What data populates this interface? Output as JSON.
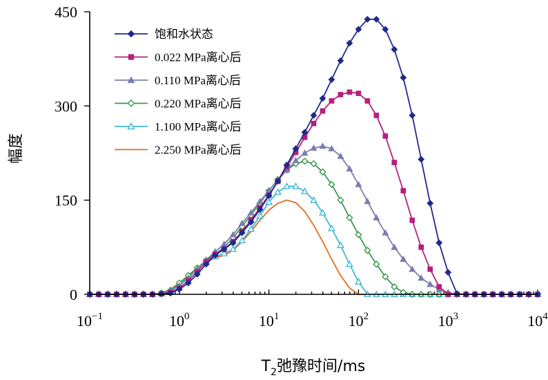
{
  "chart_data": {
    "type": "line",
    "title": "",
    "xlabel": {
      "main": "T",
      "sub": "2",
      "rest": "弛豫时间/ms"
    },
    "ylabel": "幅度",
    "x_scale": "log10",
    "xlim": [
      0.1,
      10000
    ],
    "ylim": [
      0,
      450
    ],
    "x_tick_labels": [
      {
        "base": "10",
        "exp": "−1"
      },
      {
        "base": "10",
        "exp": "0"
      },
      {
        "base": "10",
        "exp": "1"
      },
      {
        "base": "10",
        "exp": "2"
      },
      {
        "base": "10",
        "exp": "3"
      },
      {
        "base": "10",
        "exp": "4"
      }
    ],
    "y_ticks": [
      0,
      150,
      300,
      450
    ],
    "y_tick_labels": [
      "0",
      "150",
      "300",
      "450"
    ],
    "legend_position": "top-left",
    "series": [
      {
        "name": "饱和水状态",
        "color": "#1f2a8c",
        "marker": "diamond",
        "log_x": [
          -1.0,
          -0.9,
          -0.8,
          -0.7,
          -0.6,
          -0.5,
          -0.4,
          -0.3,
          -0.2,
          -0.1,
          0.0,
          0.1,
          0.2,
          0.3,
          0.4,
          0.5,
          0.6,
          0.7,
          0.8,
          0.9,
          1.0,
          1.1,
          1.2,
          1.3,
          1.4,
          1.5,
          1.6,
          1.7,
          1.8,
          1.9,
          2.0,
          2.1,
          2.2,
          2.3,
          2.4,
          2.5,
          2.6,
          2.7,
          2.8,
          2.9,
          3.0,
          3.1,
          3.2,
          3.3,
          3.4,
          3.5,
          3.6,
          3.7,
          3.8,
          3.9,
          4.0
        ],
        "values": [
          0,
          0,
          0,
          0,
          0,
          0,
          0,
          0,
          0.5,
          2,
          8,
          18,
          32,
          48,
          62,
          72,
          82,
          98,
          115,
          135,
          157,
          180,
          206,
          232,
          258,
          285,
          312,
          342,
          372,
          400,
          422,
          438,
          438,
          422,
          390,
          345,
          285,
          215,
          145,
          82,
          35,
          1,
          0,
          0,
          0,
          0,
          0,
          0,
          0,
          0,
          0
        ]
      },
      {
        "name": "0.022 MPa离心后",
        "color": "#b5207e",
        "marker": "square",
        "log_x": [
          -1.0,
          -0.9,
          -0.8,
          -0.7,
          -0.6,
          -0.5,
          -0.4,
          -0.3,
          -0.2,
          -0.1,
          0.0,
          0.1,
          0.2,
          0.3,
          0.4,
          0.5,
          0.6,
          0.7,
          0.8,
          0.9,
          1.0,
          1.1,
          1.2,
          1.3,
          1.4,
          1.5,
          1.6,
          1.7,
          1.8,
          1.9,
          2.0,
          2.1,
          2.2,
          2.3,
          2.4,
          2.5,
          2.6,
          2.7,
          2.8,
          2.9,
          3.0,
          3.1,
          3.2,
          3.3,
          3.4,
          3.5,
          3.6,
          3.7,
          3.8,
          3.9,
          4.0
        ],
        "values": [
          0,
          0,
          0,
          0,
          0,
          0,
          0,
          0,
          1,
          3,
          10,
          22,
          36,
          52,
          64,
          72,
          84,
          100,
          118,
          138,
          158,
          180,
          203,
          226,
          250,
          272,
          292,
          308,
          318,
          322,
          320,
          308,
          285,
          252,
          210,
          165,
          118,
          75,
          40,
          12,
          0,
          0,
          0,
          0,
          0,
          0,
          0,
          0,
          0,
          0,
          0
        ]
      },
      {
        "name": "0.110 MPa离心后",
        "color": "#7a7eb0",
        "marker": "triangle",
        "log_x": [
          -1.0,
          -0.9,
          -0.8,
          -0.7,
          -0.6,
          -0.5,
          -0.4,
          -0.3,
          -0.2,
          -0.1,
          0.0,
          0.1,
          0.2,
          0.3,
          0.4,
          0.5,
          0.6,
          0.7,
          0.8,
          0.9,
          1.0,
          1.1,
          1.2,
          1.3,
          1.4,
          1.5,
          1.6,
          1.7,
          1.8,
          1.9,
          2.0,
          2.1,
          2.2,
          2.3,
          2.4,
          2.5,
          2.6,
          2.7,
          2.8,
          2.9,
          3.0,
          3.1,
          3.2,
          3.3,
          3.4,
          3.5,
          3.6,
          3.7,
          3.8,
          3.9,
          4.0
        ],
        "values": [
          0,
          0,
          0,
          0,
          0,
          0,
          0,
          0,
          1,
          5,
          14,
          26,
          40,
          55,
          68,
          80,
          95,
          113,
          130,
          148,
          165,
          182,
          198,
          213,
          225,
          233,
          236,
          232,
          220,
          200,
          175,
          148,
          122,
          98,
          75,
          56,
          40,
          26,
          16,
          8,
          3,
          0,
          0,
          0,
          0,
          0,
          0,
          0,
          0,
          0,
          0
        ]
      },
      {
        "name": "0.220 MPa离心后",
        "color": "#3a9a4a",
        "marker": "diamond-open",
        "log_x": [
          -1.0,
          -0.9,
          -0.8,
          -0.7,
          -0.6,
          -0.5,
          -0.4,
          -0.3,
          -0.2,
          -0.1,
          0.0,
          0.1,
          0.2,
          0.3,
          0.4,
          0.5,
          0.6,
          0.7,
          0.8,
          0.9,
          1.0,
          1.1,
          1.2,
          1.3,
          1.4,
          1.5,
          1.6,
          1.7,
          1.8,
          1.9,
          2.0,
          2.1,
          2.2,
          2.3,
          2.4,
          2.5,
          2.6,
          2.7,
          2.8,
          2.9,
          3.0,
          3.1,
          3.2,
          3.3,
          3.4,
          3.5,
          3.6,
          3.7,
          3.8,
          3.9,
          4.0
        ],
        "values": [
          0,
          0,
          0,
          0,
          0,
          0,
          0,
          0,
          2,
          6,
          18,
          30,
          42,
          54,
          64,
          75,
          90,
          108,
          126,
          145,
          165,
          183,
          198,
          208,
          212,
          208,
          195,
          175,
          150,
          122,
          95,
          70,
          48,
          28,
          12,
          3,
          0,
          0,
          0,
          0,
          0,
          0,
          0,
          0,
          0,
          0,
          0,
          0,
          0,
          0,
          0
        ]
      },
      {
        "name": "1.100 MPa离心后",
        "color": "#40b8d8",
        "marker": "triangle-open",
        "log_x": [
          -1.0,
          -0.9,
          -0.8,
          -0.7,
          -0.6,
          -0.5,
          -0.4,
          -0.3,
          -0.2,
          -0.1,
          0.0,
          0.1,
          0.2,
          0.3,
          0.4,
          0.5,
          0.6,
          0.7,
          0.8,
          0.9,
          1.0,
          1.1,
          1.2,
          1.3,
          1.4,
          1.5,
          1.6,
          1.7,
          1.8,
          1.9,
          2.0,
          2.1,
          2.2,
          2.3,
          2.4,
          2.5,
          2.6,
          2.7,
          2.8,
          2.9,
          3.0,
          3.1,
          3.2,
          3.3,
          3.4,
          3.5,
          3.6,
          3.7,
          3.8,
          3.9,
          4.0
        ],
        "values": [
          0,
          0,
          0,
          0,
          0,
          0,
          0,
          0,
          2,
          7,
          16,
          28,
          40,
          52,
          60,
          65,
          72,
          86,
          104,
          125,
          147,
          163,
          172,
          172,
          164,
          150,
          130,
          105,
          78,
          48,
          20,
          0,
          0,
          0,
          0,
          0,
          0,
          0,
          0,
          0,
          0,
          0,
          0,
          0,
          0,
          0,
          0,
          0,
          0,
          0,
          0
        ]
      },
      {
        "name": "2.250 MPa离心后",
        "color": "#e26b1e",
        "marker": "none",
        "log_x": [
          -1.0,
          -0.9,
          -0.8,
          -0.7,
          -0.6,
          -0.5,
          -0.4,
          -0.3,
          -0.2,
          -0.1,
          0.0,
          0.1,
          0.2,
          0.3,
          0.4,
          0.5,
          0.6,
          0.7,
          0.8,
          0.9,
          1.0,
          1.1,
          1.2,
          1.3,
          1.4,
          1.5,
          1.6,
          1.7,
          1.8,
          1.9,
          2.0,
          2.1,
          2.2,
          2.3,
          2.4,
          2.5,
          2.6,
          2.7,
          2.8,
          2.9,
          3.0,
          3.1,
          3.2,
          3.3,
          3.4,
          3.5,
          3.6,
          3.7,
          3.8,
          3.9,
          4.0
        ],
        "values": [
          0,
          0,
          0,
          0,
          0,
          0,
          0,
          0,
          2,
          8,
          18,
          30,
          42,
          52,
          58,
          62,
          70,
          84,
          100,
          118,
          134,
          145,
          150,
          146,
          132,
          110,
          84,
          56,
          30,
          10,
          0,
          0,
          0,
          0,
          0,
          0,
          0,
          0,
          0,
          0,
          0,
          0,
          0,
          0,
          0,
          0,
          0,
          0,
          0,
          0,
          0
        ]
      }
    ]
  }
}
